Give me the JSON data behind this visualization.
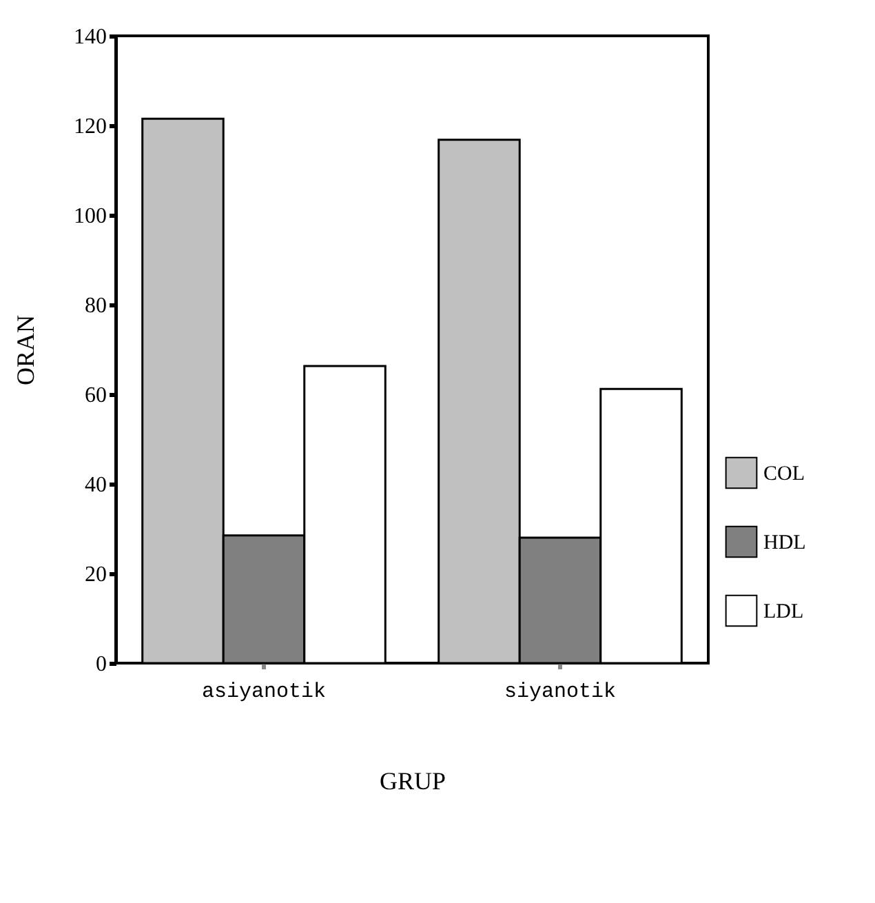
{
  "chart_data": {
    "type": "bar",
    "xlabel": "GRUP",
    "ylabel": "ORAN",
    "categories": [
      "asiyanotik",
      "siyanotik"
    ],
    "series": [
      {
        "name": "COL",
        "color": "#c0c0c0",
        "values": [
          121.5,
          116.8
        ]
      },
      {
        "name": "HDL",
        "color": "#808080",
        "values": [
          28.5,
          28.0
        ]
      },
      {
        "name": "LDL",
        "color": "#ffffff",
        "values": [
          66.3,
          61.2
        ]
      }
    ],
    "ylim": [
      0,
      140
    ],
    "yticks": [
      0,
      20,
      40,
      60,
      80,
      100,
      120,
      140
    ],
    "grid": false,
    "legend": "bottom right"
  }
}
